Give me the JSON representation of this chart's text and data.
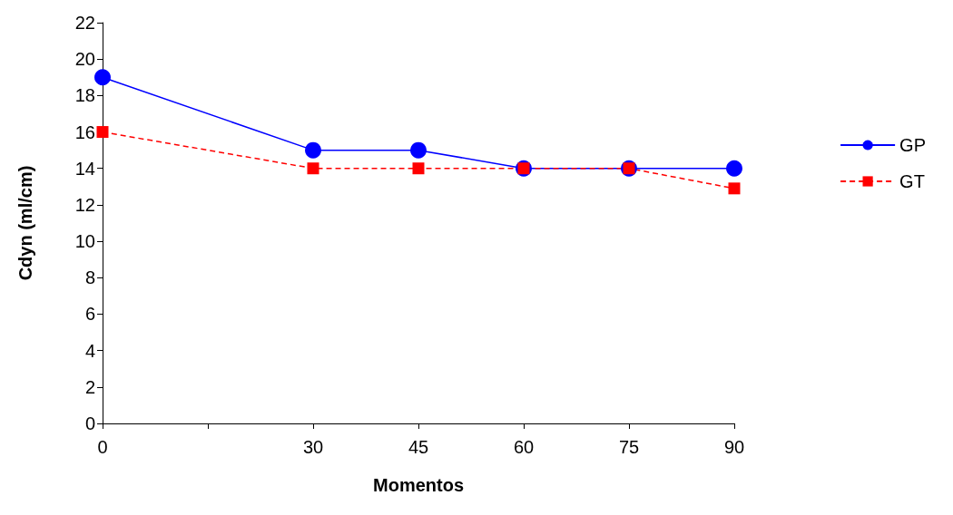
{
  "chart_data": {
    "type": "line",
    "xlabel": "Momentos",
    "ylabel": "Cdyn (ml/cm)",
    "x": [
      0,
      30,
      45,
      60,
      75,
      90
    ],
    "series": [
      {
        "name": "GP",
        "color": "#0000ff",
        "values": [
          19,
          15,
          15,
          14,
          14,
          14
        ],
        "marker": "circle",
        "line_style": "solid"
      },
      {
        "name": "GT",
        "color": "#ff0000",
        "values": [
          16,
          14,
          14,
          14,
          14,
          12.9
        ],
        "marker": "square",
        "line_style": "dashed"
      }
    ],
    "xlim": [
      0,
      90
    ],
    "xticks": [
      0,
      {
        "value": 15,
        "label": null
      },
      30,
      45,
      60,
      75,
      90
    ],
    "ylim": [
      0,
      22
    ],
    "yticks": [
      0,
      2,
      4,
      6,
      8,
      10,
      12,
      14,
      16,
      18,
      20,
      22
    ],
    "grid": false,
    "legend": "right"
  }
}
